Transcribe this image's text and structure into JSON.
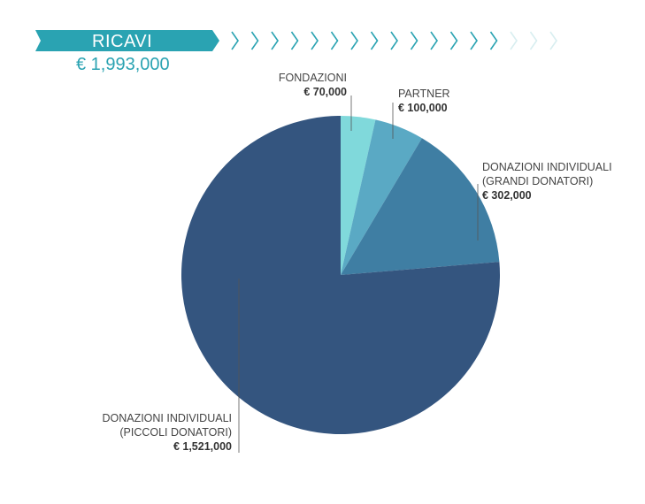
{
  "chart_data": {
    "type": "pie",
    "title": "RICAVI",
    "subtitle": "€ 1,993,000",
    "categories": [
      "FONDAZIONI",
      "PARTNER",
      "DONAZIONI INDIVIDUALI (GRANDI DONATORI)",
      "DONAZIONI INDIVIDUALI (PICCOLI DONATORI)"
    ],
    "values": [
      70000,
      100000,
      302000,
      1521000
    ],
    "value_labels": [
      "€ 70,000",
      "€ 100,000",
      "€ 302,000",
      "€ 1,521,000"
    ],
    "colors": [
      "#80d9db",
      "#5aa9c4",
      "#3f7ea3",
      "#34557f"
    ]
  }
}
